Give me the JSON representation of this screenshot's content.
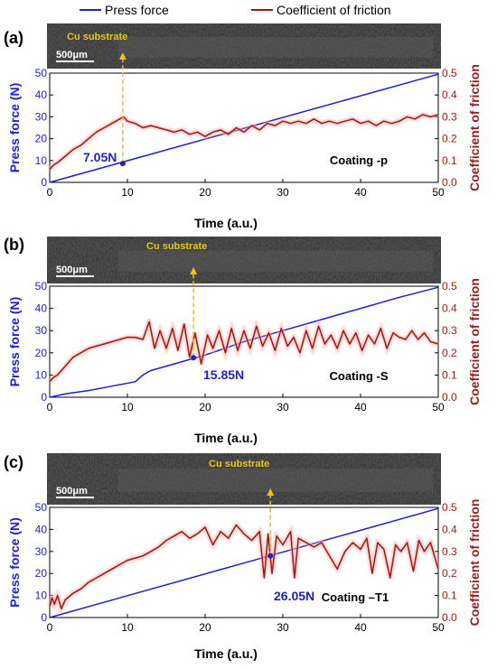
{
  "legend": {
    "items": [
      {
        "label": "Press force",
        "color": "#1f1fd0"
      },
      {
        "label": "Coefficient of friction",
        "color": "#9b1b14"
      }
    ]
  },
  "colors": {
    "force": "#1f1fd0",
    "friction": "#9b1b14",
    "friction_glow": "#f4b3b3",
    "marker": "#e8c414",
    "sem_bg": "#2a2a2a"
  },
  "chart_data": [
    {
      "type": "line",
      "panel_label": "(a)",
      "image_caption": "Cu substrate",
      "scale_bar": "500μm",
      "xlabel": "Time (a.u.)",
      "ylabel": "Press force (N)",
      "y2label": "Coefficient of friction",
      "xlim": [
        0,
        50
      ],
      "ylim": [
        0,
        50
      ],
      "y2lim": [
        0,
        0.5
      ],
      "xticks": [
        "0",
        "10",
        "20",
        "30",
        "40",
        "50"
      ],
      "yticks": [
        "0",
        "10",
        "20",
        "30",
        "40",
        "50"
      ],
      "y2ticks": [
        "0.0",
        "0.1",
        "0.2",
        "0.3",
        "0.4",
        "0.5"
      ],
      "annotation": "7.05N",
      "marker": {
        "x": 9.4,
        "y": 8.6
      },
      "coating_label": "Coating -p",
      "series": [
        {
          "axis": "left",
          "x": [
            0,
            50
          ],
          "y": [
            0,
            49.5
          ]
        },
        {
          "axis": "right",
          "x": [
            0,
            0.5,
            1,
            2,
            3,
            4,
            5,
            6,
            7,
            8,
            9,
            9.5,
            10,
            11,
            12,
            13,
            14,
            15,
            16,
            17,
            18,
            19,
            20,
            21,
            22,
            23,
            24,
            25,
            26,
            27,
            28,
            29,
            30,
            31,
            32,
            33,
            34,
            35,
            36,
            37,
            38,
            39,
            40,
            41,
            42,
            43,
            44,
            45,
            46,
            47,
            48,
            49,
            50
          ],
          "y": [
            0.06,
            0.08,
            0.09,
            0.12,
            0.15,
            0.17,
            0.2,
            0.23,
            0.25,
            0.27,
            0.29,
            0.3,
            0.28,
            0.27,
            0.25,
            0.26,
            0.25,
            0.24,
            0.23,
            0.24,
            0.22,
            0.23,
            0.21,
            0.23,
            0.24,
            0.22,
            0.25,
            0.23,
            0.26,
            0.24,
            0.27,
            0.26,
            0.28,
            0.27,
            0.28,
            0.27,
            0.29,
            0.27,
            0.28,
            0.27,
            0.28,
            0.29,
            0.27,
            0.28,
            0.26,
            0.28,
            0.27,
            0.28,
            0.3,
            0.29,
            0.31,
            0.3,
            0.31
          ]
        }
      ]
    },
    {
      "type": "line",
      "panel_label": "(b)",
      "image_caption": "Cu substrate",
      "scale_bar": "500μm",
      "xlabel": "Time (a.u.)",
      "ylabel": "Press force (N)",
      "y2label": "Coefficient of friction",
      "xlim": [
        0,
        50
      ],
      "ylim": [
        0,
        50
      ],
      "y2lim": [
        0,
        0.5
      ],
      "xticks": [
        "0",
        "10",
        "20",
        "30",
        "40",
        "50"
      ],
      "yticks": [
        "0",
        "10",
        "20",
        "30",
        "40",
        "50"
      ],
      "y2ticks": [
        "0.0",
        "0.1",
        "0.2",
        "0.3",
        "0.4",
        "0.5"
      ],
      "annotation": "15.85N",
      "marker": {
        "x": 18.5,
        "y": 17.8
      },
      "coating_label": "Coating -S",
      "series": [
        {
          "axis": "left",
          "x": [
            0,
            2,
            5,
            8,
            11,
            12,
            13,
            16,
            20,
            25,
            30,
            35,
            40,
            45,
            50
          ],
          "y": [
            0,
            1.5,
            3,
            5,
            7,
            10,
            12,
            15,
            19,
            25,
            30,
            35,
            40,
            45,
            49.5
          ]
        },
        {
          "axis": "right",
          "x": [
            0,
            0.5,
            1,
            2,
            3,
            4,
            5,
            6,
            7,
            8,
            9,
            10,
            11,
            12,
            12.8,
            13.5,
            14.2,
            15,
            15.8,
            16.5,
            17.3,
            18,
            18.7,
            19.5,
            20.3,
            21,
            21.8,
            22.6,
            23.4,
            24.2,
            25,
            25.8,
            26.6,
            27.4,
            28.2,
            29,
            29.8,
            30.6,
            31.4,
            32.2,
            33,
            33.8,
            34.6,
            35.4,
            36.2,
            37,
            37.8,
            38.6,
            39.4,
            40.2,
            41,
            41.8,
            42.6,
            43.4,
            44.2,
            45,
            45.8,
            46.6,
            47.4,
            48.2,
            49,
            50
          ],
          "y": [
            0.07,
            0.09,
            0.1,
            0.14,
            0.18,
            0.2,
            0.22,
            0.23,
            0.24,
            0.25,
            0.26,
            0.27,
            0.27,
            0.26,
            0.34,
            0.22,
            0.3,
            0.22,
            0.31,
            0.21,
            0.33,
            0.18,
            0.29,
            0.15,
            0.28,
            0.22,
            0.3,
            0.2,
            0.31,
            0.21,
            0.3,
            0.22,
            0.32,
            0.23,
            0.29,
            0.21,
            0.31,
            0.23,
            0.27,
            0.2,
            0.3,
            0.22,
            0.32,
            0.24,
            0.28,
            0.22,
            0.3,
            0.24,
            0.29,
            0.21,
            0.28,
            0.24,
            0.31,
            0.22,
            0.29,
            0.27,
            0.26,
            0.3,
            0.26,
            0.29,
            0.25,
            0.24
          ]
        }
      ]
    },
    {
      "type": "line",
      "panel_label": "(c)",
      "image_caption": "Cu substrate",
      "scale_bar": "500μm",
      "xlabel": "Time (a.u.)",
      "ylabel": "Press force (N)",
      "y2label": "Coefficient of friction",
      "xlim": [
        0,
        50
      ],
      "ylim": [
        0,
        50
      ],
      "y2lim": [
        0,
        0.5
      ],
      "xticks": [
        "0",
        "10",
        "20",
        "30",
        "40",
        "50"
      ],
      "yticks": [
        "0",
        "10",
        "20",
        "30",
        "40",
        "50"
      ],
      "y2ticks": [
        "0.0",
        "0.1",
        "0.2",
        "0.3",
        "0.4",
        "0.5"
      ],
      "annotation": "26.05N",
      "marker": {
        "x": 28.4,
        "y": 28
      },
      "coating_label": "Coating –T1",
      "series": [
        {
          "axis": "left",
          "x": [
            0,
            50
          ],
          "y": [
            0,
            49.5
          ]
        },
        {
          "axis": "right",
          "x": [
            0,
            0.3,
            0.6,
            1,
            1.5,
            2,
            3,
            4,
            5,
            6,
            7,
            8,
            9,
            10,
            11,
            12,
            13,
            14,
            15,
            16,
            17,
            18,
            19,
            20,
            21,
            22,
            23,
            24,
            25,
            26,
            27,
            27.6,
            28.1,
            28.6,
            29.2,
            30,
            31,
            31.5,
            32,
            33,
            34,
            35,
            36,
            37,
            38,
            39,
            40,
            40.8,
            41.5,
            42.2,
            43,
            43.8,
            44.5,
            45.2,
            46,
            46.8,
            47.5,
            48.2,
            49,
            50
          ],
          "y": [
            0.05,
            0.09,
            0.06,
            0.1,
            0.04,
            0.08,
            0.11,
            0.13,
            0.16,
            0.18,
            0.2,
            0.22,
            0.24,
            0.26,
            0.27,
            0.28,
            0.3,
            0.32,
            0.35,
            0.37,
            0.39,
            0.36,
            0.38,
            0.41,
            0.33,
            0.39,
            0.36,
            0.42,
            0.38,
            0.35,
            0.39,
            0.18,
            0.38,
            0.2,
            0.37,
            0.33,
            0.39,
            0.18,
            0.36,
            0.34,
            0.32,
            0.34,
            0.28,
            0.22,
            0.3,
            0.34,
            0.31,
            0.36,
            0.2,
            0.34,
            0.31,
            0.18,
            0.33,
            0.3,
            0.34,
            0.21,
            0.35,
            0.3,
            0.34,
            0.22
          ]
        }
      ]
    }
  ]
}
